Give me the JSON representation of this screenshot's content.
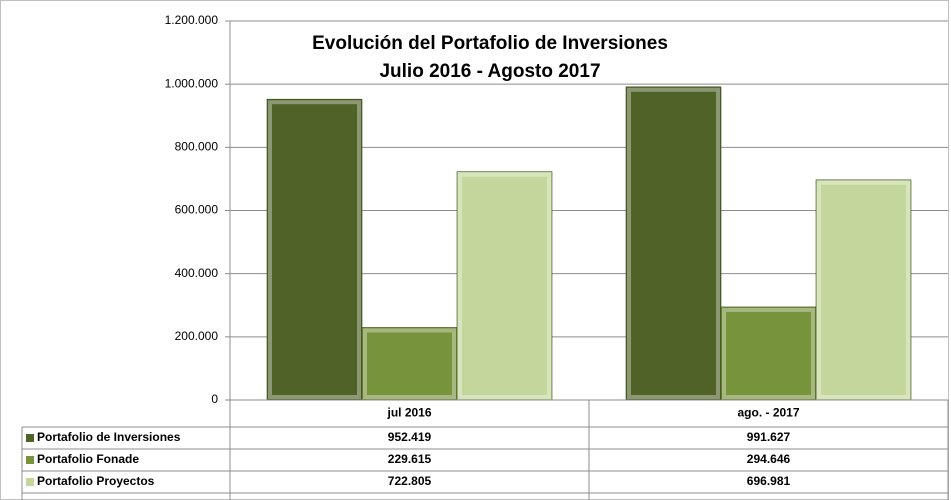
{
  "chart_data": {
    "type": "bar",
    "title": "Evolución del Portafolio de Inversiones",
    "subtitle": "Julio 2016 - Agosto 2017",
    "categories": [
      "jul  2016",
      "ago. - 2017"
    ],
    "series": [
      {
        "name": "Portafolio de Inversiones",
        "color": "#4f6228",
        "values": [
          952419,
          991627
        ],
        "value_labels": [
          "952.419",
          "991.627"
        ]
      },
      {
        "name": "Portafolio Fonade",
        "color": "#77933c",
        "values": [
          229615,
          294646
        ],
        "value_labels": [
          "229.615",
          "294.646"
        ]
      },
      {
        "name": "Portafolio Proyectos",
        "color": "#c3d69b",
        "values": [
          722805,
          696981
        ],
        "value_labels": [
          "722.805",
          "696.981"
        ]
      }
    ],
    "ylim": [
      0,
      1200000
    ],
    "yticks": [
      0,
      {
        "value": 200000,
        "label": "200.000"
      },
      {
        "value": 400000,
        "label": "400.000"
      },
      {
        "value": 600000,
        "label": "600.000"
      },
      {
        "value": 800000,
        "label": "800.000"
      },
      {
        "value": 1000000,
        "label": "1.000.000"
      },
      {
        "value": 1200000,
        "label": "1.200.000"
      }
    ],
    "grid": true
  }
}
